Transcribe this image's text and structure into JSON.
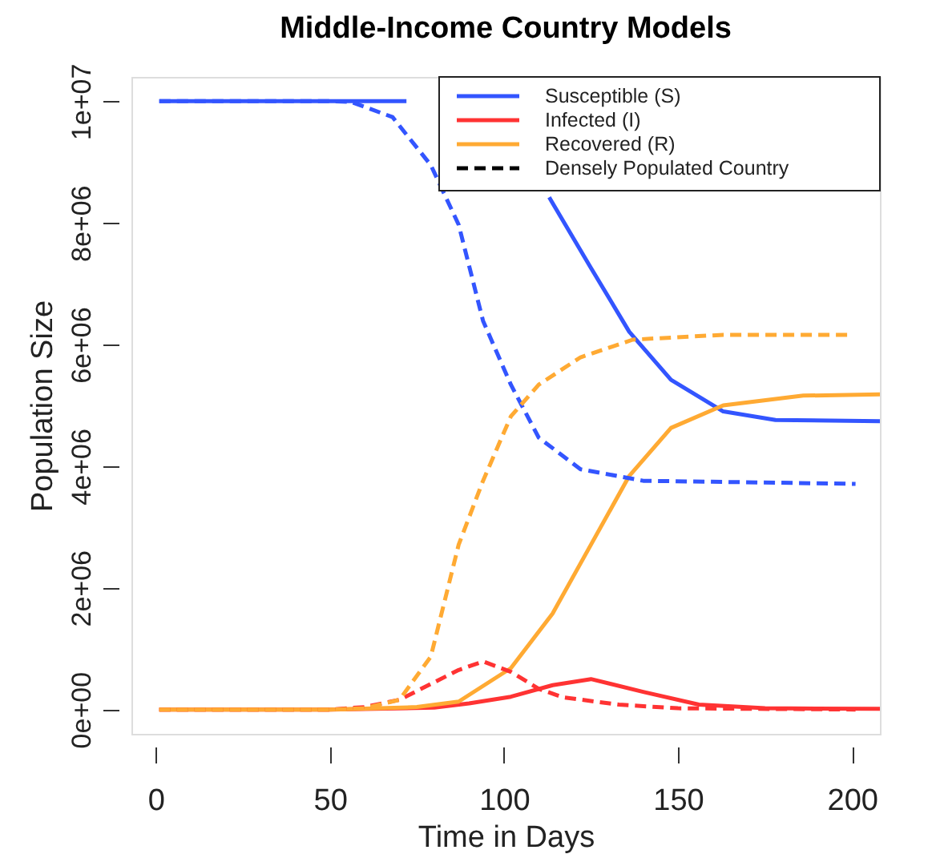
{
  "chart_data": {
    "type": "line",
    "title": "Middle-Income Country Models",
    "xlabel": "Time in Days",
    "ylabel": "Population Size",
    "xlim": [
      -7,
      208
    ],
    "ylim": [
      -400000,
      10400000
    ],
    "xticks": [
      0,
      50,
      100,
      150,
      200
    ],
    "yticks": [
      {
        "value": 0,
        "label": "0e+00"
      },
      {
        "value": 2000000,
        "label": "2e+06"
      },
      {
        "value": 4000000,
        "label": "4e+06"
      },
      {
        "value": 6000000,
        "label": "6e+06"
      },
      {
        "value": 8000000,
        "label": "8e+06"
      },
      {
        "value": 10000000,
        "label": "1e+07"
      }
    ],
    "grid": false,
    "legend": "top right",
    "marker": "none",
    "annotations": [
      "Densely Populated Country"
    ],
    "series": [
      {
        "name": "Susceptible (S)",
        "color": "#3355ff",
        "line_style": "solid",
        "x": [
          1,
          50,
          72,
          82,
          90,
          100,
          106,
          113,
          125,
          136,
          148,
          163,
          178,
          208
        ],
        "values": [
          10000000,
          10000000,
          10000000,
          null,
          null,
          null,
          null,
          8420000,
          7260000,
          6210000,
          5420000,
          4900000,
          4760000,
          4740000
        ]
      },
      {
        "name": "Infected (I)",
        "color": "#ff3333",
        "line_style": "solid",
        "x": [
          1,
          50,
          80,
          90,
          102,
          114,
          125,
          140,
          156,
          175,
          208
        ],
        "values": [
          0,
          0,
          30000,
          100000,
          210000,
          400000,
          500000,
          290000,
          80000,
          20000,
          10000
        ]
      },
      {
        "name": "Recovered (R)",
        "color": "#ffaa33",
        "line_style": "solid",
        "x": [
          1,
          50,
          75,
          87,
          102,
          114,
          125,
          136,
          148,
          163,
          186,
          208
        ],
        "values": [
          0,
          0,
          40000,
          130000,
          680000,
          1580000,
          2710000,
          3840000,
          4630000,
          5000000,
          5160000,
          5180000
        ]
      },
      {
        "color": "#3355ff",
        "line_style": "dashed",
        "x": [
          1,
          50,
          56,
          68,
          79,
          87,
          94,
          102,
          110,
          122,
          140,
          201
        ],
        "values": [
          10000000,
          10000000,
          9990000,
          9740000,
          8950000,
          7970000,
          6390000,
          5340000,
          4470000,
          3950000,
          3760000,
          3710000
        ]
      },
      {
        "color": "#ff3333",
        "line_style": "dashed",
        "x": [
          1,
          50,
          60,
          70,
          79,
          87,
          94,
          102,
          110,
          117,
          133,
          150,
          201
        ],
        "values": [
          0,
          0,
          40000,
          160000,
          420000,
          650000,
          790000,
          620000,
          340000,
          200000,
          80000,
          20000,
          0
        ]
      },
      {
        "color": "#ffaa33",
        "line_style": "dashed",
        "x": [
          1,
          50,
          60,
          70,
          79,
          87,
          94,
          102,
          110,
          122,
          137,
          163,
          199
        ],
        "values": [
          0,
          0,
          20000,
          160000,
          870000,
          2710000,
          3760000,
          4820000,
          5340000,
          5790000,
          6080000,
          6160000,
          6160000
        ]
      }
    ]
  }
}
